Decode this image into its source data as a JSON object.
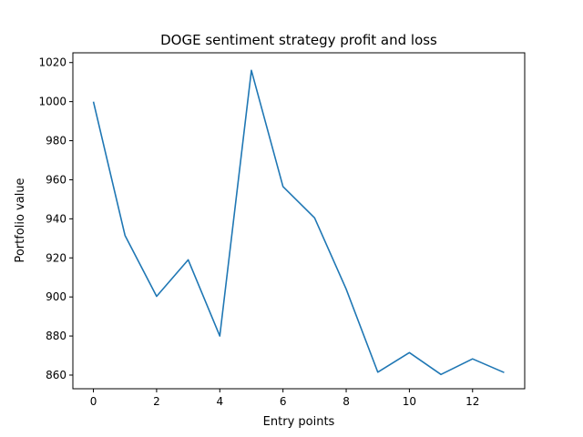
{
  "chart_data": {
    "type": "line",
    "title": "DOGE sentiment strategy profit and loss",
    "xlabel": "Entry points",
    "ylabel": "Portfolio value",
    "xlim": [
      -0.65,
      13.65
    ],
    "ylim": [
      853,
      1025
    ],
    "xticks": [
      0,
      2,
      4,
      6,
      8,
      10,
      12
    ],
    "yticks": [
      860,
      880,
      900,
      920,
      940,
      960,
      980,
      1000,
      1020
    ],
    "grid": false,
    "colors": {
      "line": "#1f77b4",
      "axis": "#000000",
      "background": "#ffffff"
    },
    "series": [
      {
        "x": [
          0,
          1,
          2,
          3,
          4,
          5,
          6,
          7,
          8,
          9,
          10,
          11,
          12,
          13
        ],
        "values": [
          1000,
          931.5,
          900.3,
          919,
          880,
          1016,
          956.5,
          940.5,
          904,
          861.5,
          871.5,
          860.3,
          868.3,
          861.3
        ]
      }
    ]
  }
}
